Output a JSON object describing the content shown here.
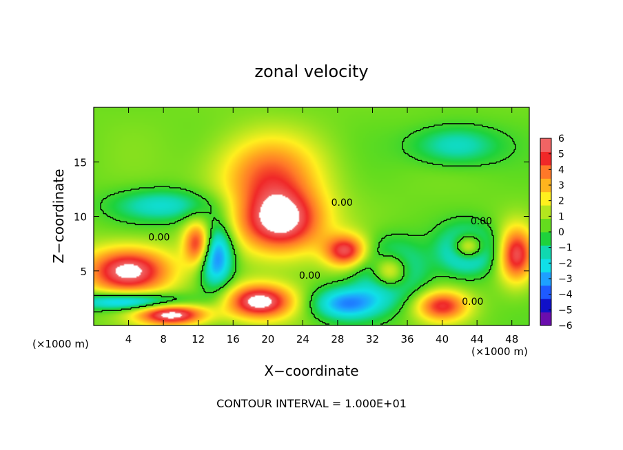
{
  "chart_data": {
    "type": "heatmap",
    "title": "zonal velocity",
    "xlabel": "X−coordinate",
    "ylabel": "Z−coordinate",
    "x_unit_left": "(×1000 m)",
    "x_unit_right": "(×1000 m)",
    "xlim": [
      0,
      50
    ],
    "ylim": [
      0,
      20
    ],
    "x_ticks": [
      4,
      8,
      12,
      16,
      20,
      24,
      28,
      32,
      36,
      40,
      44,
      48
    ],
    "y_ticks": [
      5,
      10,
      15
    ],
    "colorbar": {
      "min": -6,
      "max": 6,
      "ticks": [
        6,
        5,
        4,
        3,
        2,
        1,
        0,
        -1,
        -2,
        -3,
        -4,
        -5,
        -6
      ],
      "tick_labels": [
        "6",
        "5",
        "4",
        "3",
        "2",
        "1",
        "0",
        "−1",
        "−2",
        "−3",
        "−4",
        "−5",
        "−6"
      ],
      "colors": [
        "#6a0dad",
        "#1010c8",
        "#1e5aff",
        "#1ea0ff",
        "#10e0e8",
        "#10d8b0",
        "#1ed23c",
        "#64dc1e",
        "#b4e61e",
        "#fff01e",
        "#ffb41e",
        "#ff7828",
        "#f02828",
        "#f06464"
      ]
    },
    "contour_labels": [
      {
        "text": "0.00",
        "x": 28.5,
        "y": 11.3
      },
      {
        "text": "0.00",
        "x": 7.5,
        "y": 8.1
      },
      {
        "text": "0.00",
        "x": 24.8,
        "y": 4.6
      },
      {
        "text": "0.00",
        "x": 44.5,
        "y": 9.6
      },
      {
        "text": "0.00",
        "x": 43.5,
        "y": 2.2
      }
    ],
    "footer": "CONTOUR INTERVAL = 1.000E+01",
    "field_features": [
      {
        "value": 6,
        "x": 21.5,
        "z": 9.5,
        "rx": 5.0,
        "rz": 3.0
      },
      {
        "value": 3.5,
        "x": 20,
        "z": 14,
        "rx": 6.0,
        "rz": 3.5
      },
      {
        "value": 6,
        "x": 4,
        "z": 5,
        "rx": 5,
        "rz": 2.2
      },
      {
        "value": 5,
        "x": 12,
        "z": 7.5,
        "rx": 1.6,
        "rz": 2.0
      },
      {
        "value": -5,
        "x": 14,
        "z": 6.5,
        "rx": 2.0,
        "rz": 3.0
      },
      {
        "value": 6,
        "x": 19,
        "z": 2.2,
        "rx": 4,
        "rz": 1.6
      },
      {
        "value": -5,
        "x": 34,
        "z": 5,
        "rx": 3.5,
        "rz": 2.5
      },
      {
        "value": 6,
        "x": 34,
        "z": 5,
        "rx": 2.2,
        "rz": 1.6
      },
      {
        "value": -5,
        "x": 43,
        "z": 7,
        "rx": 3.0,
        "rz": 2.0
      },
      {
        "value": 6,
        "x": 43,
        "z": 7.2,
        "rx": 1.8,
        "rz": 1.2
      },
      {
        "value": 5,
        "x": 48.5,
        "z": 6.5,
        "rx": 2.0,
        "rz": 2.5
      },
      {
        "value": -2.5,
        "x": 8,
        "z": 11,
        "rx": 6,
        "rz": 1.5
      },
      {
        "value": -2.5,
        "x": 41.5,
        "z": 16.5,
        "rx": 5,
        "rz": 1.8
      },
      {
        "value": 6,
        "x": 9,
        "z": 1.0,
        "rx": 4.0,
        "rz": 1.0
      },
      {
        "value": 5,
        "x": 29,
        "z": 6.8,
        "rx": 2.5,
        "rz": 1.5
      },
      {
        "value": -4.5,
        "x": 4,
        "z": 2.2,
        "rx": 6,
        "rz": 0.8
      },
      {
        "value": 4.5,
        "x": 40,
        "z": 1.8,
        "rx": 3,
        "rz": 1.4
      },
      {
        "value": -4,
        "x": 29,
        "z": 2.0,
        "rx": 4,
        "rz": 1.5
      }
    ]
  }
}
